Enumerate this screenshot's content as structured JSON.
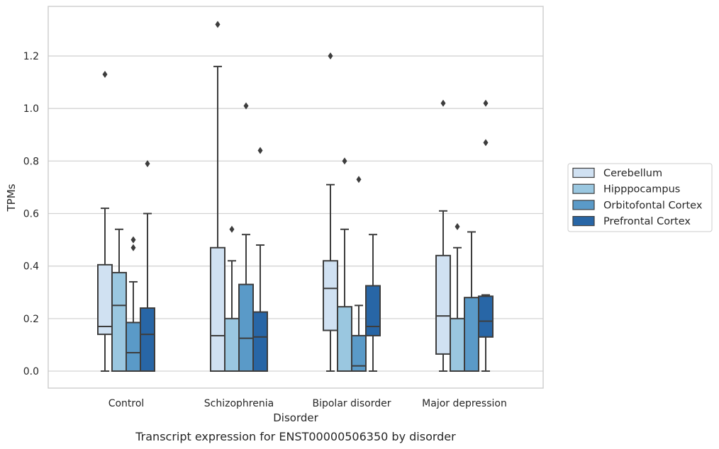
{
  "chart_data": {
    "type": "box",
    "xlabel": "Disorder",
    "ylabel": "TPMs",
    "caption": "Transcript expression for ENST00000506350 by disorder",
    "categories": [
      "Control",
      "Schizophrenia",
      "Bipolar disorder",
      "Major depression"
    ],
    "ylim": [
      -0.065,
      1.39
    ],
    "yticks": [
      "0.0",
      "0.2",
      "0.4",
      "0.6",
      "0.8",
      "1.0",
      "1.2"
    ],
    "grid": true,
    "legend_position": "right",
    "series": [
      {
        "name": "Cerebellum",
        "color": "#d0e1f2",
        "boxes": [
          {
            "whislo": 0.0,
            "q1": 0.14,
            "med": 0.17,
            "q3": 0.405,
            "whishi": 0.62,
            "fliers": [
              1.13
            ]
          },
          {
            "whislo": 0.0,
            "q1": 0.0,
            "med": 0.135,
            "q3": 0.47,
            "whishi": 1.16,
            "fliers": [
              1.32
            ]
          },
          {
            "whislo": 0.0,
            "q1": 0.155,
            "med": 0.315,
            "q3": 0.42,
            "whishi": 0.71,
            "fliers": [
              1.2
            ]
          },
          {
            "whislo": 0.0,
            "q1": 0.065,
            "med": 0.21,
            "q3": 0.44,
            "whishi": 0.61,
            "fliers": [
              1.02
            ]
          }
        ]
      },
      {
        "name": "Hipppocampus",
        "color": "#9ac7e0",
        "boxes": [
          {
            "whislo": 0.0,
            "q1": 0.0,
            "med": 0.25,
            "q3": 0.375,
            "whishi": 0.54,
            "fliers": []
          },
          {
            "whislo": 0.0,
            "q1": 0.0,
            "med": 0.0,
            "q3": 0.2,
            "whishi": 0.42,
            "fliers": [
              0.54
            ]
          },
          {
            "whislo": 0.0,
            "q1": 0.0,
            "med": 0.0,
            "q3": 0.245,
            "whishi": 0.54,
            "fliers": [
              0.8
            ]
          },
          {
            "whislo": 0.0,
            "q1": 0.0,
            "med": 0.0,
            "q3": 0.2,
            "whishi": 0.47,
            "fliers": [
              0.55
            ]
          }
        ]
      },
      {
        "name": "Orbitofontal Cortex",
        "color": "#5a9ac8",
        "boxes": [
          {
            "whislo": 0.0,
            "q1": 0.0,
            "med": 0.07,
            "q3": 0.185,
            "whishi": 0.34,
            "fliers": [
              0.47,
              0.5
            ]
          },
          {
            "whislo": 0.0,
            "q1": 0.0,
            "med": 0.125,
            "q3": 0.33,
            "whishi": 0.52,
            "fliers": [
              1.01
            ]
          },
          {
            "whislo": 0.0,
            "q1": 0.0,
            "med": 0.02,
            "q3": 0.135,
            "whishi": 0.25,
            "fliers": [
              0.73
            ]
          },
          {
            "whislo": 0.0,
            "q1": 0.0,
            "med": 0.0,
            "q3": 0.28,
            "whishi": 0.53,
            "fliers": []
          }
        ]
      },
      {
        "name": "Prefrontal Cortex",
        "color": "#2866a6",
        "boxes": [
          {
            "whislo": 0.0,
            "q1": 0.0,
            "med": 0.14,
            "q3": 0.24,
            "whishi": 0.6,
            "fliers": [
              0.79
            ]
          },
          {
            "whislo": 0.0,
            "q1": 0.0,
            "med": 0.13,
            "q3": 0.225,
            "whishi": 0.48,
            "fliers": [
              0.84
            ]
          },
          {
            "whislo": 0.0,
            "q1": 0.135,
            "med": 0.17,
            "q3": 0.325,
            "whishi": 0.52,
            "fliers": []
          },
          {
            "whislo": 0.0,
            "q1": 0.13,
            "med": 0.19,
            "q3": 0.285,
            "whishi": 0.29,
            "fliers": [
              0.87,
              1.02
            ]
          }
        ]
      }
    ]
  }
}
